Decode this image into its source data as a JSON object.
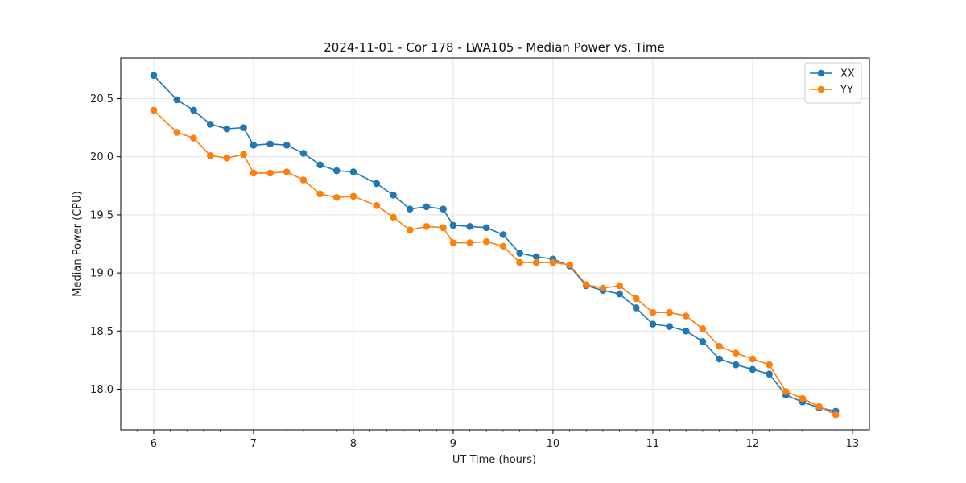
{
  "chart_data": {
    "type": "line",
    "title": "2024-11-01 - Cor 178 - LWA105 - Median Power vs. Time",
    "xlabel": "UT Time (hours)",
    "ylabel": "Median Power (CPU)",
    "xlim": [
      5.67,
      13.17
    ],
    "ylim": [
      17.65,
      20.85
    ],
    "xticks": [
      6,
      7,
      8,
      9,
      10,
      11,
      12,
      13
    ],
    "yticks": [
      18.0,
      18.5,
      19.0,
      19.5,
      20.0,
      20.5
    ],
    "grid": true,
    "legend_position": "top-right",
    "x": [
      6.0,
      6.233,
      6.4,
      6.567,
      6.733,
      6.9,
      7.0,
      7.167,
      7.333,
      7.5,
      7.667,
      7.833,
      8.0,
      8.233,
      8.4,
      8.567,
      8.733,
      8.9,
      9.0,
      9.167,
      9.333,
      9.5,
      9.667,
      9.833,
      10.0,
      10.167,
      10.333,
      10.5,
      10.667,
      10.833,
      11.0,
      11.167,
      11.333,
      11.5,
      11.667,
      11.833,
      12.0,
      12.167,
      12.333,
      12.5,
      12.667,
      12.833
    ],
    "series": [
      {
        "name": "XX",
        "color": "#1f77b4",
        "values": [
          20.7,
          20.49,
          20.4,
          20.28,
          20.24,
          20.25,
          20.1,
          20.11,
          20.1,
          20.03,
          19.93,
          19.88,
          19.87,
          19.77,
          19.67,
          19.55,
          19.57,
          19.55,
          19.41,
          19.4,
          19.39,
          19.33,
          19.17,
          19.14,
          19.12,
          19.06,
          18.89,
          18.85,
          18.82,
          18.7,
          18.56,
          18.54,
          18.5,
          18.41,
          18.26,
          18.21,
          18.17,
          18.13,
          17.95,
          17.89,
          17.84,
          17.81
        ]
      },
      {
        "name": "YY",
        "color": "#ff7f0e",
        "values": [
          20.4,
          20.21,
          20.16,
          20.01,
          19.99,
          20.02,
          19.86,
          19.86,
          19.87,
          19.8,
          19.68,
          19.65,
          19.66,
          19.58,
          19.48,
          19.37,
          19.4,
          19.39,
          19.26,
          19.26,
          19.27,
          19.23,
          19.09,
          19.09,
          19.09,
          19.07,
          18.9,
          18.87,
          18.89,
          18.78,
          18.66,
          18.66,
          18.63,
          18.52,
          18.37,
          18.31,
          18.26,
          18.21,
          17.98,
          17.92,
          17.85,
          17.78
        ]
      }
    ]
  }
}
